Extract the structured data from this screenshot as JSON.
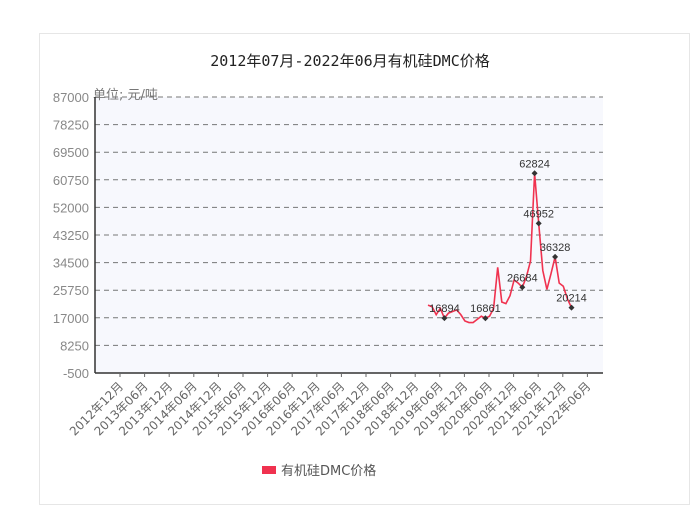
{
  "chart_data": {
    "type": "line",
    "title": "2012年07月-2022年06月有机硅DMC价格",
    "unit_label": "单位：元/吨",
    "xlabel": "",
    "ylabel": "单位：元/吨",
    "ylim": [
      -500,
      87000
    ],
    "yticks": [
      87000,
      78250,
      69500,
      60750,
      52000,
      43250,
      34500,
      25750,
      17000,
      8250,
      -500
    ],
    "x_tick_labels": [
      "2012年12月",
      "2013年06月",
      "2013年12月",
      "2014年06月",
      "2014年12月",
      "2015年06月",
      "2015年12月",
      "2016年06月",
      "2016年12月",
      "2017年06月",
      "2017年12月",
      "2018年06月",
      "2018年12月",
      "2019年06月",
      "2019年12月",
      "2020年06月",
      "2020年12月",
      "2021年06月",
      "2021年12月",
      "2022年06月"
    ],
    "grid": true,
    "legend": {
      "position": "bottom",
      "entries": [
        "有机硅DMC价格"
      ]
    },
    "series": [
      {
        "name": "有机硅DMC价格",
        "color": "#f0324f",
        "points": [
          {
            "x": "2019-03",
            "y": 21000
          },
          {
            "x": "2019-04",
            "y": 20500
          },
          {
            "x": "2019-05",
            "y": 18000
          },
          {
            "x": "2019-06",
            "y": 20000
          },
          {
            "x": "2019-07",
            "y": 16894,
            "label": "16894"
          },
          {
            "x": "2019-08",
            "y": 18500
          },
          {
            "x": "2019-09",
            "y": 19000
          },
          {
            "x": "2019-10",
            "y": 19500
          },
          {
            "x": "2019-11",
            "y": 18000
          },
          {
            "x": "2019-12",
            "y": 16000
          },
          {
            "x": "2020-01",
            "y": 15500
          },
          {
            "x": "2020-02",
            "y": 15500
          },
          {
            "x": "2020-03",
            "y": 16500
          },
          {
            "x": "2020-04",
            "y": 17500
          },
          {
            "x": "2020-05",
            "y": 16861,
            "label": "16861"
          },
          {
            "x": "2020-06",
            "y": 17500
          },
          {
            "x": "2020-07",
            "y": 20000
          },
          {
            "x": "2020-08",
            "y": 33000
          },
          {
            "x": "2020-09",
            "y": 22000
          },
          {
            "x": "2020-10",
            "y": 21500
          },
          {
            "x": "2020-11",
            "y": 24000
          },
          {
            "x": "2020-12",
            "y": 29000
          },
          {
            "x": "2021-01",
            "y": 28000
          },
          {
            "x": "2021-02",
            "y": 26684,
            "label": "26684"
          },
          {
            "x": "2021-03",
            "y": 30000
          },
          {
            "x": "2021-04",
            "y": 35000
          },
          {
            "x": "2021-05",
            "y": 62824,
            "label": "62824"
          },
          {
            "x": "2021-06",
            "y": 46952,
            "label": "46952"
          },
          {
            "x": "2021-07",
            "y": 32000
          },
          {
            "x": "2021-08",
            "y": 26000
          },
          {
            "x": "2021-09",
            "y": 31000
          },
          {
            "x": "2021-10",
            "y": 36328,
            "label": "36328"
          },
          {
            "x": "2021-11",
            "y": 28000
          },
          {
            "x": "2021-12",
            "y": 27000
          },
          {
            "x": "2022-01",
            "y": 23000
          },
          {
            "x": "2022-02",
            "y": 20214,
            "label": "20214"
          }
        ]
      }
    ]
  }
}
